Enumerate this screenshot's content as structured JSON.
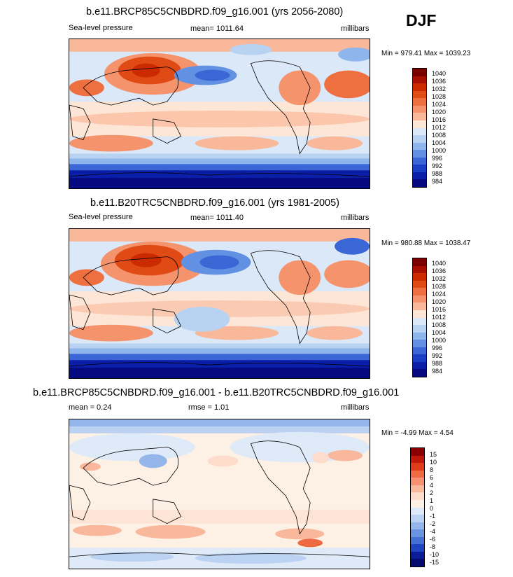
{
  "season": "DJF",
  "panels": [
    {
      "title": "b.e11.BRCP85C5CNBDRD.f09_g16.001 (yrs 2056-2080)",
      "left": "Sea-level pressure",
      "center": "mean= 1011.64",
      "right": "millibars",
      "minmax": "Min = 979.41 Max = 1039.23",
      "levels": [
        "1040",
        "1036",
        "1032",
        "1028",
        "1024",
        "1020",
        "1016",
        "1012",
        "1008",
        "1004",
        "1000",
        "996",
        "992",
        "988",
        "984"
      ]
    },
    {
      "title": "b.e11.B20TRC5CNBDRD.f09_g16.001 (yrs 1981-2005)",
      "left": "Sea-level pressure",
      "center": "mean= 1011.40",
      "right": "millibars",
      "minmax": "Min = 980.88 Max = 1038.47",
      "levels": [
        "1040",
        "1036",
        "1032",
        "1028",
        "1024",
        "1020",
        "1016",
        "1012",
        "1008",
        "1004",
        "1000",
        "996",
        "992",
        "988",
        "984"
      ]
    },
    {
      "title": "b.e11.BRCP85C5CNBDRD.f09_g16.001 - b.e11.B20TRC5CNBDRD.f09_g16.001",
      "left": "mean =   0.24",
      "center": "rmse =   1.01",
      "right": "millibars",
      "minmax": "Min =  -4.99 Max =   4.54",
      "levels": [
        "15",
        "10",
        "8",
        "6",
        "4",
        "2",
        "1",
        "0",
        "-1",
        "-2",
        "-4",
        "-6",
        "-8",
        "-10",
        "-15"
      ]
    }
  ],
  "colors": {
    "abs_scale": [
      "#7a0000",
      "#a80f00",
      "#cc2a00",
      "#e04a14",
      "#ee7040",
      "#f5946c",
      "#f9b89a",
      "#fde6d6",
      "#dbe8f8",
      "#b8d2f2",
      "#8fb6ec",
      "#6290e2",
      "#3a66d6",
      "#1a3ec4",
      "#0a1ea8",
      "#060a80"
    ],
    "diff_scale": [
      "#8a0000",
      "#c0180a",
      "#e03c1c",
      "#ee6a42",
      "#f59070",
      "#f9b89c",
      "#fddccc",
      "#fdf0e4",
      "#dfeaf8",
      "#bcd2f2",
      "#94b6ea",
      "#6a94e0",
      "#4470d4",
      "#1e44c0",
      "#0a1c98",
      "#040c70"
    ]
  }
}
